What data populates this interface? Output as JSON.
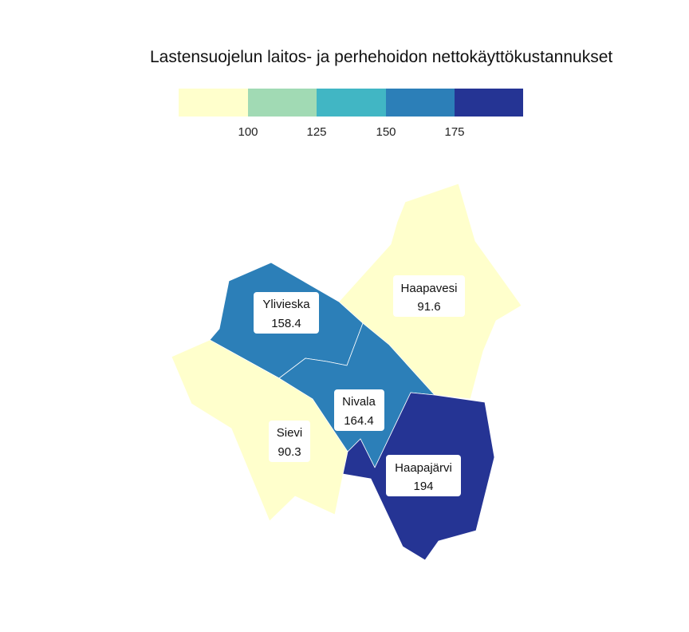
{
  "title": "Lastensuojelun laitos- ja perhehoidon nettokäyttökustannukset",
  "legend": {
    "bins": [
      {
        "color": "#ffffcc"
      },
      {
        "color": "#a1dab4"
      },
      {
        "color": "#41b6c4"
      },
      {
        "color": "#2c7fb8"
      },
      {
        "color": "#253494"
      }
    ],
    "ticks": [
      "100",
      "125",
      "150",
      "175"
    ]
  },
  "municipalities": [
    {
      "id": "haapavesi",
      "name": "Haapavesi",
      "value": "91.6",
      "color": "#ffffcc"
    },
    {
      "id": "ylivieska",
      "name": "Ylivieska",
      "value": "158.4",
      "color": "#2c7fb8"
    },
    {
      "id": "nivala",
      "name": "Nivala",
      "value": "164.4",
      "color": "#2c7fb8"
    },
    {
      "id": "sievi",
      "name": "Sievi",
      "value": "90.3",
      "color": "#ffffcc"
    },
    {
      "id": "haapajarvi",
      "name": "Haapajärvi",
      "value": "194",
      "color": "#253494"
    }
  ]
}
